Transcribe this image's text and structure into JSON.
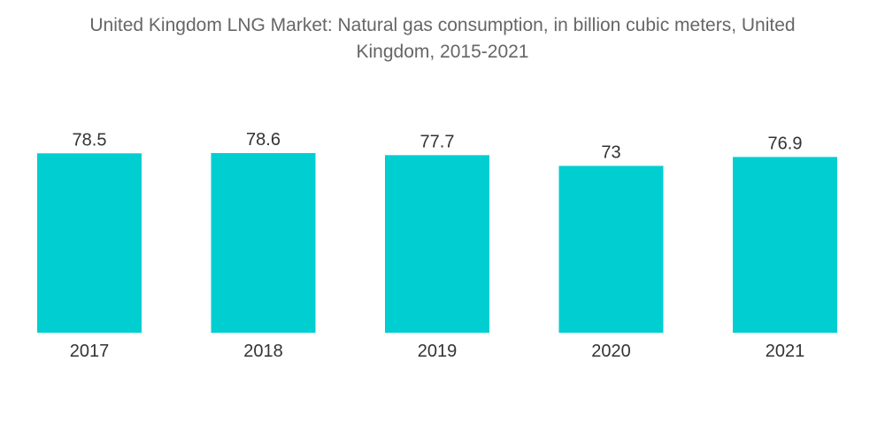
{
  "chart_data": {
    "type": "bar",
    "title_lines": [
      "United Kingdom LNG Market: Natural gas consumption, in billion cubic meters, United",
      "Kingdom, 2015-2021"
    ],
    "categories": [
      "2017",
      "2018",
      "2019",
      "2020",
      "2021"
    ],
    "values": [
      78.5,
      78.6,
      77.7,
      73,
      76.9
    ],
    "value_labels": [
      "78.5",
      "78.6",
      "77.7",
      "73",
      "76.9"
    ],
    "xlabel": "",
    "ylabel": "",
    "ylim": [
      0,
      78.6
    ],
    "grid": false,
    "legend": "none",
    "bar_color": "#00CED1"
  }
}
